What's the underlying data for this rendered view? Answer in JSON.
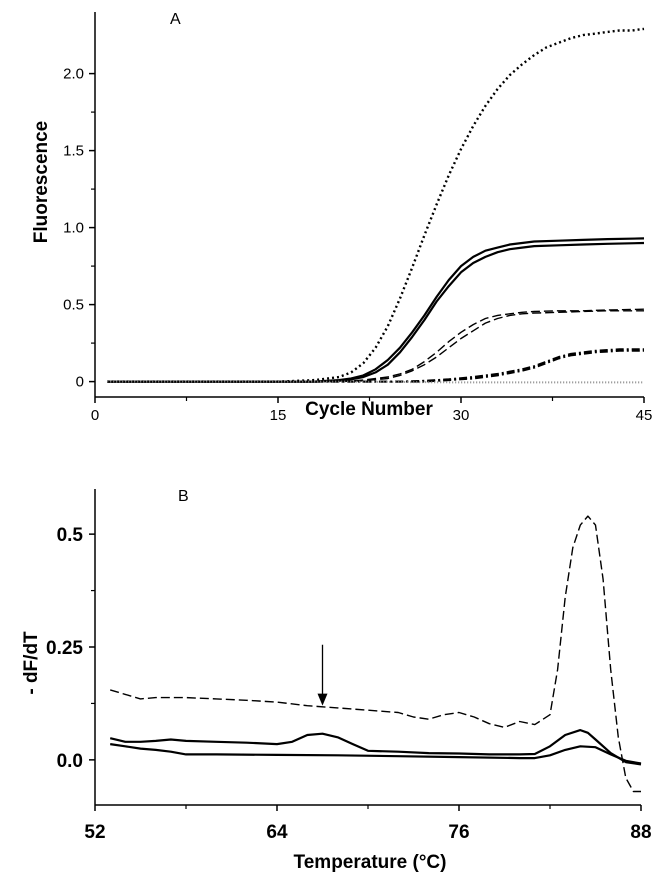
{
  "chart_data": [
    {
      "type": "line",
      "panel_label": "A",
      "xlabel": "Cycle Number",
      "ylabel": "Fluorescence",
      "xlim": [
        0,
        45
      ],
      "ylim": [
        -0.1,
        2.4
      ],
      "xticks": [
        0,
        15,
        30,
        45
      ],
      "yticks": [
        0,
        0.5,
        1.0,
        1.5,
        2.0
      ],
      "ytick_labels": [
        "0",
        "0.5",
        "1.0",
        "1.5",
        "2.0"
      ],
      "grid": false,
      "series": [
        {
          "style": "dotted",
          "x": [
            1,
            5,
            10,
            15,
            18,
            20,
            21,
            22,
            23,
            24,
            25,
            26,
            27,
            28,
            29,
            30,
            31,
            32,
            33,
            34,
            35,
            36,
            37,
            38,
            39,
            40,
            41,
            42,
            43,
            44,
            45
          ],
          "y": [
            0,
            0,
            0,
            0,
            0.01,
            0.03,
            0.06,
            0.12,
            0.22,
            0.36,
            0.54,
            0.74,
            0.95,
            1.15,
            1.34,
            1.51,
            1.66,
            1.79,
            1.9,
            1.99,
            2.06,
            2.12,
            2.17,
            2.2,
            2.23,
            2.25,
            2.26,
            2.27,
            2.28,
            2.28,
            2.29
          ]
        },
        {
          "style": "solid",
          "x": [
            1,
            10,
            18,
            20,
            21,
            22,
            23,
            24,
            25,
            26,
            27,
            28,
            29,
            30,
            31,
            32,
            33,
            34,
            35,
            36,
            38,
            40,
            42,
            45
          ],
          "y": [
            0,
            0,
            0,
            0.01,
            0.02,
            0.04,
            0.08,
            0.14,
            0.22,
            0.32,
            0.43,
            0.55,
            0.66,
            0.75,
            0.81,
            0.85,
            0.87,
            0.89,
            0.9,
            0.91,
            0.915,
            0.92,
            0.925,
            0.93
          ]
        },
        {
          "style": "solid",
          "x": [
            1,
            10,
            18,
            20,
            21,
            22,
            23,
            24,
            25,
            26,
            27,
            28,
            29,
            30,
            31,
            32,
            33,
            34,
            35,
            36,
            38,
            40,
            42,
            45
          ],
          "y": [
            0,
            0,
            0,
            0.005,
            0.015,
            0.03,
            0.06,
            0.11,
            0.19,
            0.29,
            0.4,
            0.52,
            0.62,
            0.71,
            0.77,
            0.81,
            0.84,
            0.86,
            0.87,
            0.88,
            0.885,
            0.89,
            0.895,
            0.9
          ]
        },
        {
          "style": "dashed",
          "x": [
            1,
            15,
            20,
            22,
            24,
            25,
            26,
            27,
            28,
            29,
            30,
            31,
            32,
            33,
            34,
            35,
            36,
            38,
            40,
            42,
            45
          ],
          "y": [
            0,
            0,
            0,
            0.01,
            0.03,
            0.05,
            0.08,
            0.13,
            0.19,
            0.26,
            0.32,
            0.37,
            0.41,
            0.43,
            0.44,
            0.45,
            0.455,
            0.46,
            0.46,
            0.465,
            0.47
          ]
        },
        {
          "style": "dashed",
          "x": [
            1,
            15,
            20,
            22,
            24,
            25,
            26,
            27,
            28,
            29,
            30,
            31,
            32,
            33,
            34,
            35,
            36,
            38,
            40,
            42,
            45
          ],
          "y": [
            0,
            0,
            0,
            0.005,
            0.02,
            0.04,
            0.07,
            0.11,
            0.16,
            0.22,
            0.28,
            0.33,
            0.38,
            0.41,
            0.43,
            0.44,
            0.445,
            0.45,
            0.455,
            0.46,
            0.46
          ]
        },
        {
          "style": "dashdot",
          "x": [
            1,
            20,
            25,
            27,
            29,
            31,
            33,
            35,
            36,
            37,
            38,
            39,
            40,
            41,
            42,
            43,
            45
          ],
          "y": [
            0,
            0,
            0,
            0.005,
            0.015,
            0.03,
            0.05,
            0.08,
            0.1,
            0.13,
            0.16,
            0.18,
            0.19,
            0.2,
            0.205,
            0.21,
            0.21
          ]
        },
        {
          "style": "dashdot",
          "x": [
            1,
            20,
            25,
            27,
            29,
            31,
            33,
            35,
            36,
            37,
            38,
            39,
            40,
            41,
            42,
            43,
            45
          ],
          "y": [
            0,
            0,
            0,
            0,
            0.01,
            0.02,
            0.04,
            0.07,
            0.09,
            0.12,
            0.15,
            0.17,
            0.18,
            0.19,
            0.195,
            0.2,
            0.2
          ]
        },
        {
          "style": "dotted-gray",
          "x": [
            1,
            10,
            20,
            30,
            40,
            45
          ],
          "y": [
            0,
            0,
            0,
            -0.005,
            -0.005,
            -0.005
          ]
        }
      ]
    },
    {
      "type": "line",
      "panel_label": "B",
      "xlabel": "Temperature (°C)",
      "ylabel": "- dF/dT",
      "xlim": [
        52,
        88
      ],
      "ylim": [
        -0.1,
        0.6
      ],
      "xticks": [
        52,
        64,
        76,
        88
      ],
      "yticks": [
        0.0,
        0.25,
        0.5
      ],
      "ytick_labels": [
        "0.0",
        "0.25",
        "0.5"
      ],
      "grid": false,
      "annotations": [
        {
          "type": "arrow",
          "x": 67,
          "y_tip": 0.12,
          "y_tail": 0.255
        }
      ],
      "series": [
        {
          "style": "dashed",
          "x": [
            53,
            54,
            55,
            56,
            58,
            60,
            62,
            64,
            66,
            68,
            70,
            72,
            73,
            74,
            75,
            76,
            77,
            78,
            79,
            80,
            81,
            82,
            82.5,
            83,
            83.5,
            84,
            84.5,
            85,
            85.5,
            86,
            86.5,
            87,
            87.5,
            88
          ],
          "y": [
            0.155,
            0.145,
            0.135,
            0.138,
            0.138,
            0.135,
            0.132,
            0.128,
            0.12,
            0.115,
            0.11,
            0.105,
            0.095,
            0.09,
            0.1,
            0.105,
            0.095,
            0.08,
            0.072,
            0.085,
            0.078,
            0.1,
            0.2,
            0.36,
            0.47,
            0.52,
            0.54,
            0.52,
            0.4,
            0.2,
            0.05,
            -0.04,
            -0.07,
            -0.07
          ]
        },
        {
          "style": "solid",
          "x": [
            53,
            54,
            55,
            56,
            57,
            58,
            60,
            62,
            64,
            65,
            66,
            67,
            68,
            69,
            70,
            72,
            74,
            76,
            78,
            80,
            81,
            82,
            83,
            84,
            84.5,
            85,
            86,
            87,
            88
          ],
          "y": [
            0.048,
            0.04,
            0.04,
            0.042,
            0.045,
            0.042,
            0.04,
            0.038,
            0.035,
            0.04,
            0.055,
            0.058,
            0.05,
            0.035,
            0.02,
            0.018,
            0.015,
            0.014,
            0.012,
            0.012,
            0.013,
            0.03,
            0.055,
            0.066,
            0.06,
            0.045,
            0.015,
            -0.005,
            -0.01
          ]
        },
        {
          "style": "solid",
          "x": [
            53,
            54,
            55,
            56,
            57,
            58,
            60,
            64,
            68,
            72,
            76,
            80,
            81,
            82,
            83,
            84,
            85,
            86,
            87,
            88
          ],
          "y": [
            0.035,
            0.03,
            0.025,
            0.022,
            0.018,
            0.012,
            0.012,
            0.011,
            0.01,
            0.008,
            0.006,
            0.004,
            0.004,
            0.01,
            0.022,
            0.03,
            0.028,
            0.012,
            -0.002,
            -0.008
          ]
        }
      ]
    }
  ]
}
